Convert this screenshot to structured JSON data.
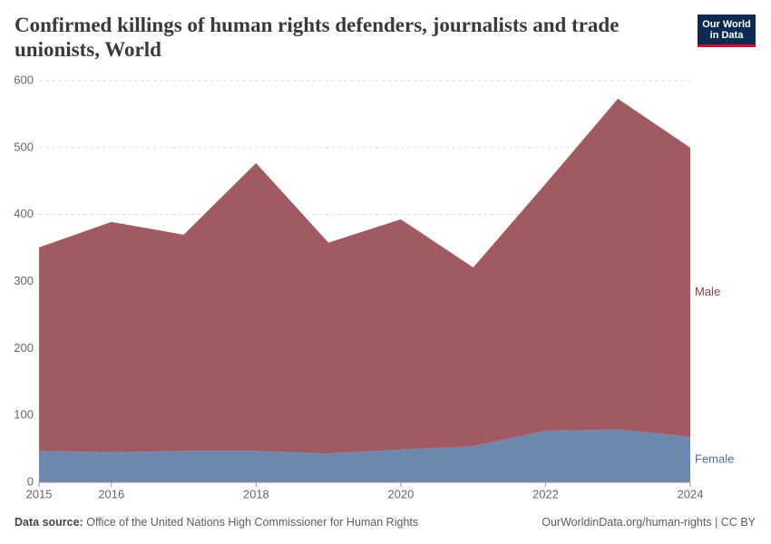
{
  "header": {
    "title": "Confirmed killings of human rights defenders, journalists and trade unionists, World",
    "logo": [
      "Our World",
      "in Data"
    ]
  },
  "chart_data": {
    "type": "stacked-area",
    "x": [
      2015,
      2016,
      2017,
      2018,
      2019,
      2020,
      2021,
      2022,
      2023,
      2024
    ],
    "series": [
      {
        "name": "Female",
        "color": "#6e87ae",
        "label_color": "#4a6aa0",
        "values": [
          47,
          45,
          47,
          47,
          43,
          49,
          54,
          77,
          79,
          68
        ]
      },
      {
        "name": "Male",
        "color": "#a15a61",
        "label_color": "#8c3a42",
        "values": [
          304,
          344,
          323,
          430,
          315,
          344,
          267,
          369,
          494,
          432
        ]
      }
    ],
    "xlim": [
      2015,
      2024
    ],
    "xticks": [
      2015,
      2016,
      2018,
      2020,
      2022,
      2024
    ],
    "ylim": [
      0,
      600
    ],
    "yticks": [
      0,
      100,
      200,
      300,
      400,
      500,
      600
    ],
    "grid": true
  },
  "footer": {
    "source_label": "Data source:",
    "source": "Office of the United Nations High Commissioner for Human Rights",
    "url": "OurWorldinData.org/human-rights | CC BY"
  }
}
